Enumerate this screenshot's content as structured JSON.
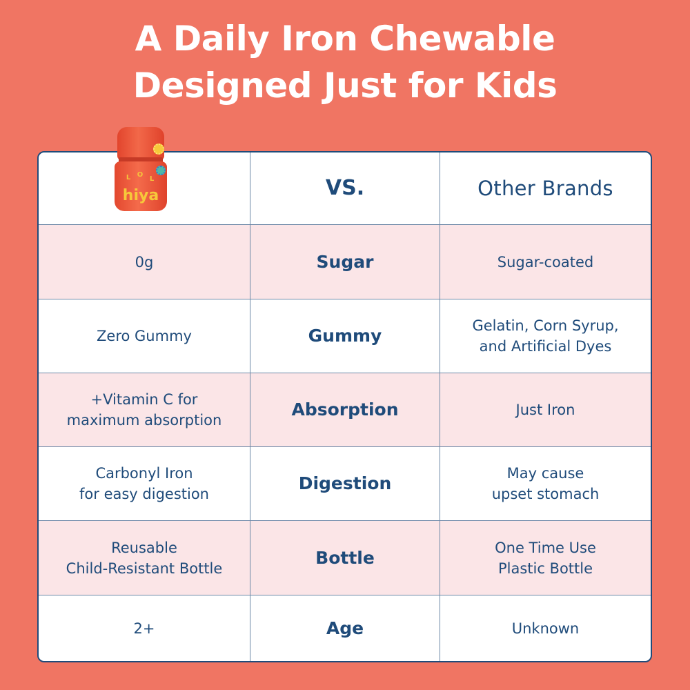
{
  "headline": {
    "line1": "A Daily Iron Chewable",
    "line2": "Designed Just for Kids"
  },
  "product": {
    "brand": "hiya",
    "letters": [
      "L",
      "O",
      "L"
    ],
    "icon": "product-bottle-icon"
  },
  "table": {
    "header": {
      "vs": "VS.",
      "other": "Other Brands"
    },
    "rows": [
      {
        "hiya": "0g",
        "feature": "Sugar",
        "other": "Sugar-coated"
      },
      {
        "hiya": "Zero Gummy",
        "feature": "Gummy",
        "other": "Gelatin, Corn Syrup,\nand Artificial Dyes"
      },
      {
        "hiya": "+Vitamin C for\nmaximum absorption",
        "feature": "Absorption",
        "other": "Just Iron"
      },
      {
        "hiya": "Carbonyl Iron\nfor easy digestion",
        "feature": "Digestion",
        "other": "May cause\nupset stomach"
      },
      {
        "hiya": "Reusable\nChild-Resistant Bottle",
        "feature": "Bottle",
        "other": "One Time Use\nPlastic Bottle"
      },
      {
        "hiya": "2+",
        "feature": "Age",
        "other": "Unknown"
      }
    ]
  },
  "colors": {
    "background": "#f07563",
    "text": "#1f4b7a",
    "row_alt": "#fbe5e7",
    "bottle": "#ee5a3e",
    "brand_text": "#f6c83a"
  }
}
